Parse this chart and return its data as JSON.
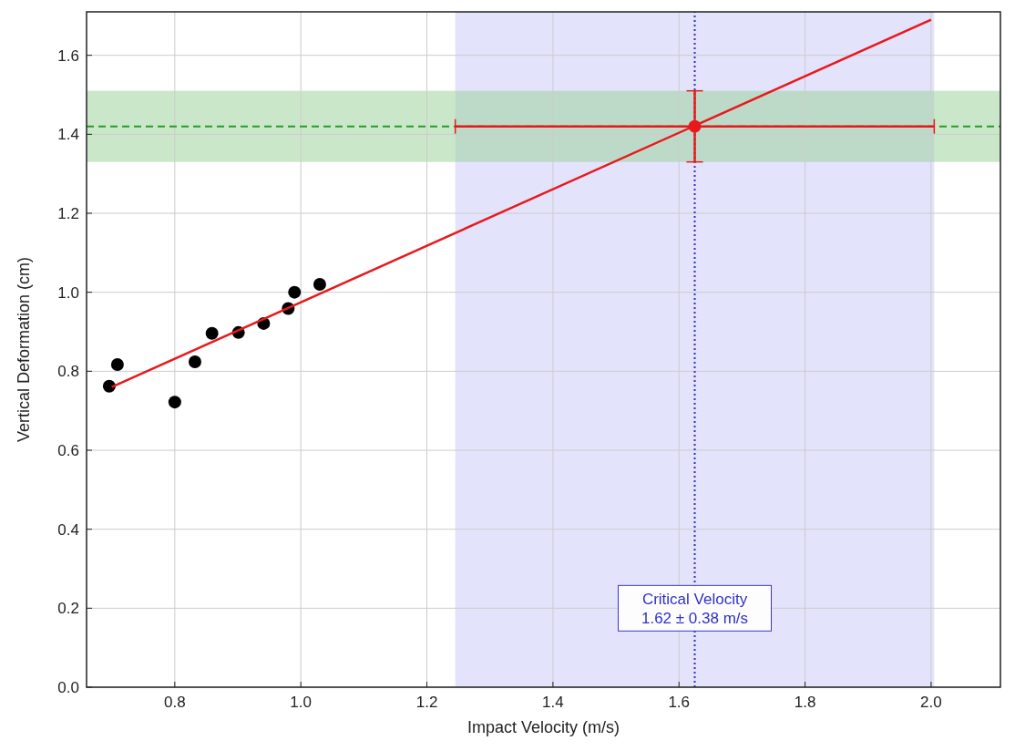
{
  "chart_data": {
    "type": "scatter",
    "xlabel": "Impact Velocity (m/s)",
    "ylabel": "Vertical Deformation (cm)",
    "xlim": [
      0.66,
      2.11
    ],
    "ylim": [
      0,
      1.71
    ],
    "xticks": [
      0.8,
      {
        "value": 1.0,
        "label": "1.0"
      },
      1.2,
      1.4,
      1.6,
      1.8,
      {
        "value": 2.0,
        "label": "2.0"
      }
    ],
    "yticks": [
      {
        "value": 0,
        "label": "0.0"
      },
      0.2,
      0.4,
      0.6,
      0.8,
      {
        "value": 1.0,
        "label": "1.0"
      },
      1.2,
      1.4,
      1.6
    ],
    "grid": true,
    "marker": "circle",
    "series": [
      {
        "color": "#000000",
        "x": [
          0.696,
          0.709,
          0.8,
          0.832,
          0.859,
          0.901,
          0.941,
          0.98,
          0.99,
          1.03
        ],
        "values": [
          0.762,
          0.817,
          0.722,
          0.824,
          0.896,
          0.898,
          0.921,
          0.959,
          1.0,
          1.02
        ]
      },
      {
        "type": "line",
        "color": "#e8191c",
        "marker": "none",
        "x": [
          0.7,
          2.0
        ],
        "values": [
          0.76,
          1.69
        ]
      },
      {
        "color": "#e8191c",
        "x": [
          1.625
        ],
        "values": [
          1.42
        ],
        "errors": [
          0.09
        ],
        "xerrors": [
          0.38
        ]
      }
    ],
    "bands": [
      {
        "axis": "x",
        "from": 1.245,
        "to": 2.005,
        "color": "#c8c8f8"
      },
      {
        "axis": "y",
        "from": 1.33,
        "to": 1.51,
        "color": "#9fd39f"
      }
    ],
    "ref_lines": [
      {
        "axis": "y",
        "value": 1.42,
        "color": "#2a9a2a",
        "line_style": "dashed"
      },
      {
        "axis": "x",
        "value": 1.625,
        "color": "#3030c8",
        "line_style": "dotted",
        "label": "Critical Velocity\n1.62 ± 0.38 m/s"
      }
    ]
  }
}
